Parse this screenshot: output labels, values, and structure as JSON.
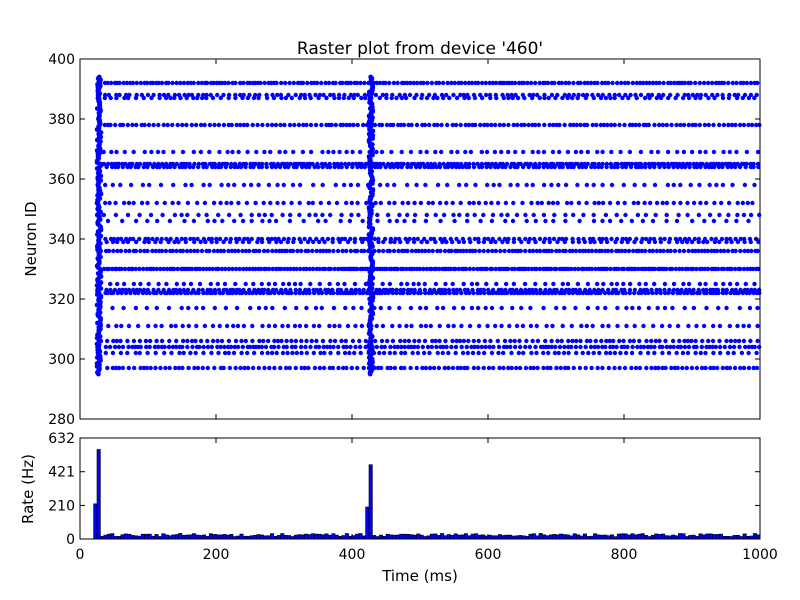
{
  "chart_data": [
    {
      "type": "scatter",
      "title": "Raster plot from device '460'",
      "xlabel": "",
      "ylabel": "Neuron ID",
      "xlim": [
        0,
        1000
      ],
      "ylim": [
        280,
        400
      ],
      "yticks": [
        280,
        300,
        320,
        340,
        360,
        380,
        400
      ],
      "marker_color": "#0000ff",
      "series": [
        {
          "burst_times_ms": [
            28,
            428
          ],
          "burst_neuron_range": [
            295,
            394
          ],
          "neurons": [
            {
              "id": 392,
              "spacing_ms": 5
            },
            {
              "id": 388,
              "spacing_ms": 8
            },
            {
              "id": 387,
              "spacing_ms": 9
            },
            {
              "id": 378,
              "spacing_ms": 6
            },
            {
              "id": 369,
              "spacing_ms": 12
            },
            {
              "id": 365,
              "spacing_ms": 5
            },
            {
              "id": 364,
              "spacing_ms": 6
            },
            {
              "id": 358,
              "spacing_ms": 14
            },
            {
              "id": 352,
              "spacing_ms": 10
            },
            {
              "id": 348,
              "spacing_ms": 13
            },
            {
              "id": 346,
              "spacing_ms": 16
            },
            {
              "id": 340,
              "spacing_ms": 7
            },
            {
              "id": 339,
              "spacing_ms": 9
            },
            {
              "id": 336,
              "spacing_ms": 5
            },
            {
              "id": 330,
              "spacing_ms": 4
            },
            {
              "id": 325,
              "spacing_ms": 12
            },
            {
              "id": 323,
              "spacing_ms": 6
            },
            {
              "id": 322,
              "spacing_ms": 5
            },
            {
              "id": 317,
              "spacing_ms": 14
            },
            {
              "id": 311,
              "spacing_ms": 11
            },
            {
              "id": 306,
              "spacing_ms": 8
            },
            {
              "id": 304,
              "spacing_ms": 6
            },
            {
              "id": 302,
              "spacing_ms": 9
            },
            {
              "id": 297,
              "spacing_ms": 7
            }
          ]
        }
      ]
    },
    {
      "type": "bar",
      "title": "",
      "xlabel": "Time (ms)",
      "ylabel": "Rate (Hz)",
      "xlim": [
        0,
        1000
      ],
      "ylim": [
        0,
        632
      ],
      "xticks": [
        0,
        200,
        400,
        600,
        800,
        1000
      ],
      "yticks": [
        0,
        210,
        421,
        632
      ],
      "bar_color": "#0000ff",
      "bin_ms": 5,
      "baseline_rate_hz": 25,
      "series": [
        {
          "peaks": [
            {
              "start_ms": 20,
              "value": 220
            },
            {
              "start_ms": 25,
              "value": 560
            },
            {
              "start_ms": 420,
              "value": 200
            },
            {
              "start_ms": 425,
              "value": 465
            }
          ]
        }
      ]
    }
  ]
}
